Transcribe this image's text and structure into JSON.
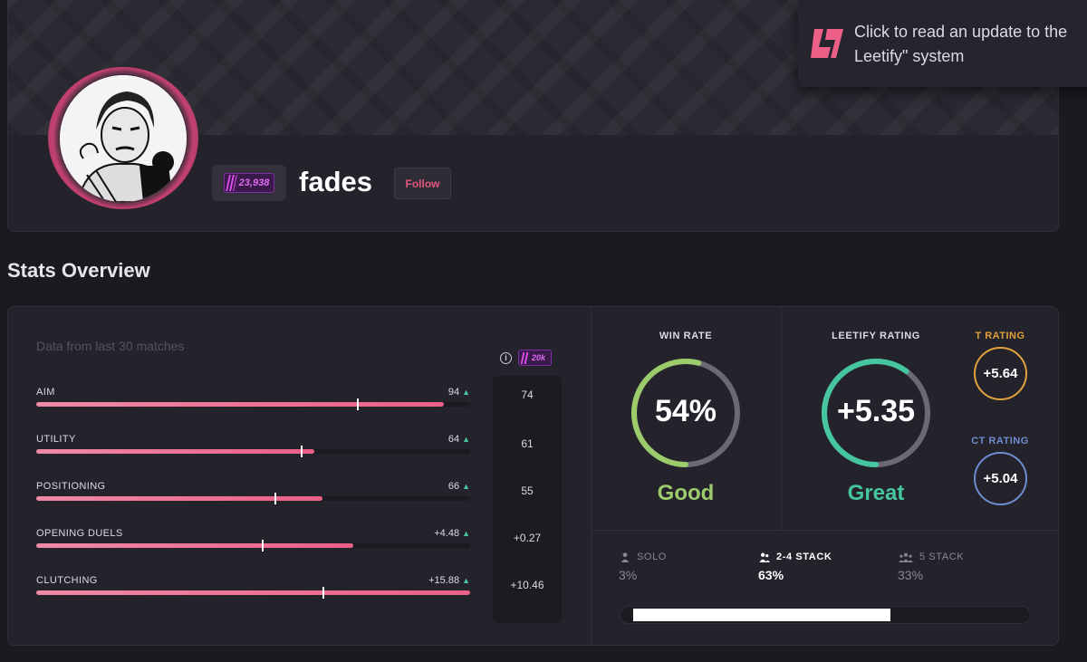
{
  "profile": {
    "rank_value": "23,938",
    "name": "fades",
    "follow_label": "Follow"
  },
  "toast": {
    "line1": "Click to read an update to the",
    "line2": "Leetify\" system"
  },
  "section_title": "Stats Overview",
  "stats": {
    "data_note": "Data from last 30 matches",
    "benchmark_label": "20k",
    "rows": [
      {
        "label": "AIM",
        "value": "94",
        "fill_pct": 94,
        "benchmark_pct": 74,
        "benchmark": "74"
      },
      {
        "label": "UTILITY",
        "value": "64",
        "fill_pct": 64,
        "benchmark_pct": 61,
        "benchmark": "61"
      },
      {
        "label": "POSITIONING",
        "value": "66",
        "fill_pct": 66,
        "benchmark_pct": 55,
        "benchmark": "55"
      },
      {
        "label": "OPENING DUELS",
        "value": "+4.48",
        "fill_pct": 73,
        "benchmark_pct": 52,
        "benchmark": "+0.27"
      },
      {
        "label": "CLUTCHING",
        "value": "+15.88",
        "fill_pct": 100,
        "benchmark_pct": 66,
        "benchmark": "+10.46"
      }
    ]
  },
  "win_rate": {
    "title": "WIN RATE",
    "value": "54%",
    "fraction": 0.54,
    "word": "Good",
    "color": "#9ccb6c"
  },
  "leetify_rating": {
    "title": "LEETIFY RATING",
    "value": "+5.35",
    "fraction": 0.6,
    "word": "Great",
    "color": "#45c6a0"
  },
  "t_rating": {
    "title": "T RATING",
    "value": "+5.64",
    "color": "#e0a23c"
  },
  "ct_rating": {
    "title": "CT RATING",
    "value": "+5.04",
    "color": "#6e8ccf"
  },
  "queue": [
    {
      "label": "SOLO",
      "pct": "3%",
      "active": false,
      "icon": "person-icon"
    },
    {
      "label": "2-4 STACK",
      "pct": "63%",
      "active": true,
      "icon": "duo-icon"
    },
    {
      "label": "5 STACK",
      "pct": "33%",
      "active": false,
      "icon": "group-icon"
    }
  ],
  "queue_bar": {
    "start_fraction": 0.03,
    "end_fraction": 0.66
  },
  "colors": {
    "accent": "#ec5f86",
    "background": "#1b1a20",
    "panel": "#24222b"
  }
}
